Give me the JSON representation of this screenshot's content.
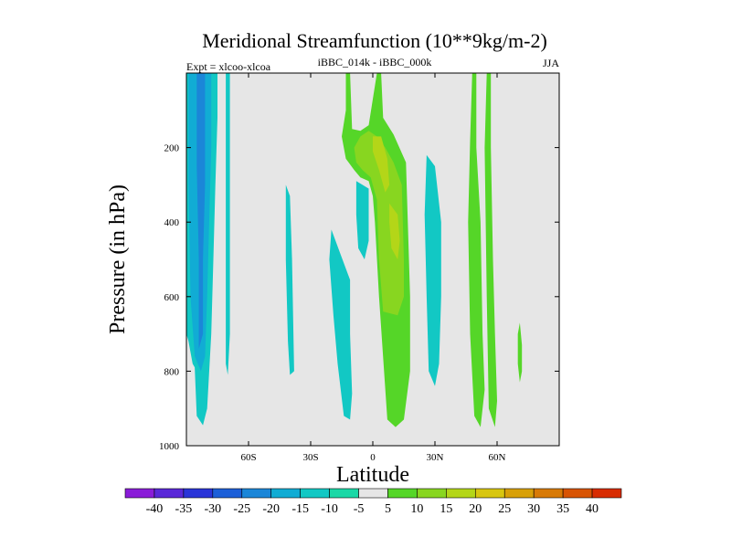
{
  "chart_data": {
    "type": "contour",
    "title": "Meridional Streamfunction (10**9kg/m-2)",
    "subtitle_left": "Expt = xlcoo-xlcoa",
    "subtitle_center": "iBBC_014k - iBBC_000k",
    "subtitle_right": "JJA",
    "xlabel": "Latitude",
    "ylabel": "Pressure (in hPa)",
    "xlim": [
      -90,
      90
    ],
    "ylim": [
      0,
      1000
    ],
    "x_ticks": [
      {
        "value": -60,
        "label": "60S"
      },
      {
        "value": -30,
        "label": "30S"
      },
      {
        "value": 0,
        "label": "0"
      },
      {
        "value": 30,
        "label": "30N"
      },
      {
        "value": 60,
        "label": "60N"
      }
    ],
    "y_ticks": [
      {
        "value": 200,
        "label": "200"
      },
      {
        "value": 400,
        "label": "400"
      },
      {
        "value": 600,
        "label": "600"
      },
      {
        "value": 800,
        "label": "800"
      },
      {
        "value": 1000,
        "label": "1000"
      }
    ],
    "background_color": "#e6e6e6",
    "colorbar": {
      "labels": [
        "-40",
        "-35",
        "-30",
        "-25",
        "-20",
        "-15",
        "-10",
        "-5",
        "5",
        "10",
        "15",
        "20",
        "25",
        "30",
        "35",
        "40"
      ],
      "colors": [
        "#8a1cd8",
        "#5a28d8",
        "#2a34d8",
        "#1c5fd8",
        "#1b86d8",
        "#11acd4",
        "#12c8c4",
        "#1ad8a6",
        "#e6e6e6",
        "#55d628",
        "#88d620",
        "#b4d618",
        "#d8c610",
        "#d8a008",
        "#d87a06",
        "#d85404",
        "#d82c02"
      ]
    },
    "regions": [
      {
        "level": "-10",
        "color": "#12c8c4",
        "points": [
          [
            -90,
            0
          ],
          [
            -75,
            0
          ],
          [
            -75,
            120
          ],
          [
            -76,
            300
          ],
          [
            -77,
            500
          ],
          [
            -78,
            700
          ],
          [
            -80,
            900
          ],
          [
            -82,
            945
          ],
          [
            -85,
            920
          ],
          [
            -86,
            790
          ],
          [
            -87,
            780
          ],
          [
            -89,
            720
          ],
          [
            -90,
            700
          ]
        ]
      },
      {
        "level": "-15",
        "color": "#11acd4",
        "points": [
          [
            -89,
            0
          ],
          [
            -78,
            0
          ],
          [
            -78,
            200
          ],
          [
            -79,
            400
          ],
          [
            -80,
            600
          ],
          [
            -81,
            760
          ],
          [
            -83,
            800
          ],
          [
            -86,
            760
          ],
          [
            -88,
            600
          ],
          [
            -89,
            300
          ]
        ]
      },
      {
        "level": "-20",
        "color": "#1b86d8",
        "points": [
          [
            -85,
            0
          ],
          [
            -81,
            0
          ],
          [
            -81,
            300
          ],
          [
            -82,
            500
          ],
          [
            -82,
            700
          ],
          [
            -84,
            740
          ],
          [
            -84,
            500
          ],
          [
            -85,
            250
          ]
        ]
      },
      {
        "level": "-10",
        "color": "#12c8c4",
        "points": [
          [
            -71,
            0
          ],
          [
            -69,
            0
          ],
          [
            -69,
            200
          ],
          [
            -69,
            500
          ],
          [
            -69,
            700
          ],
          [
            -70,
            810
          ],
          [
            -71,
            780
          ],
          [
            -71,
            500
          ],
          [
            -71,
            200
          ]
        ]
      },
      {
        "level": "-10",
        "color": "#12c8c4",
        "points": [
          [
            -42,
            300
          ],
          [
            -40,
            330
          ],
          [
            -39,
            500
          ],
          [
            -38,
            800
          ],
          [
            -40,
            810
          ],
          [
            -41,
            720
          ],
          [
            -42,
            500
          ]
        ]
      },
      {
        "level": "-10",
        "color": "#12c8c4",
        "points": [
          [
            -20,
            420
          ],
          [
            -16,
            480
          ],
          [
            -11,
            555
          ],
          [
            -11,
            700
          ],
          [
            -10,
            860
          ],
          [
            -11,
            930
          ],
          [
            -14,
            920
          ],
          [
            -17,
            780
          ],
          [
            -19,
            650
          ],
          [
            -21,
            500
          ]
        ]
      },
      {
        "level": "-10",
        "color": "#12c8c4",
        "points": [
          [
            -8,
            290
          ],
          [
            -2,
            310
          ],
          [
            -2,
            450
          ],
          [
            -4,
            500
          ],
          [
            -7,
            470
          ],
          [
            -8,
            380
          ]
        ]
      },
      {
        "level": "-10",
        "color": "#12c8c4",
        "points": [
          [
            26,
            220
          ],
          [
            30,
            250
          ],
          [
            33,
            400
          ],
          [
            33,
            600
          ],
          [
            32,
            780
          ],
          [
            30,
            840
          ],
          [
            27,
            800
          ],
          [
            26,
            600
          ],
          [
            25,
            380
          ]
        ]
      },
      {
        "level": "5",
        "color": "#55d628",
        "points": [
          [
            -13,
            0
          ],
          [
            -11,
            0
          ],
          [
            -10,
            150
          ],
          [
            -6,
            155
          ],
          [
            -2,
            140
          ],
          [
            2,
            0
          ],
          [
            4,
            0
          ],
          [
            5,
            120
          ],
          [
            10,
            165
          ],
          [
            16,
            240
          ],
          [
            18,
            600
          ],
          [
            18,
            800
          ],
          [
            15,
            930
          ],
          [
            11,
            950
          ],
          [
            7,
            930
          ],
          [
            3,
            600
          ],
          [
            1,
            400
          ],
          [
            0,
            330
          ],
          [
            -2,
            290
          ],
          [
            -6,
            280
          ],
          [
            -9,
            260
          ],
          [
            -13,
            230
          ],
          [
            -15,
            170
          ],
          [
            -13,
            100
          ]
        ]
      },
      {
        "level": "10",
        "color": "#88d620",
        "points": [
          [
            -9,
            200
          ],
          [
            -6,
            170
          ],
          [
            -2,
            155
          ],
          [
            2,
            170
          ],
          [
            6,
            200
          ],
          [
            10,
            240
          ],
          [
            14,
            300
          ],
          [
            15,
            500
          ],
          [
            15,
            600
          ],
          [
            12,
            650
          ],
          [
            5,
            640
          ],
          [
            3,
            500
          ],
          [
            2,
            340
          ],
          [
            -1,
            280
          ],
          [
            -5,
            260
          ],
          [
            -8,
            240
          ]
        ]
      },
      {
        "level": "15",
        "color": "#b4d618",
        "points": [
          [
            0,
            170
          ],
          [
            4,
            170
          ],
          [
            7,
            230
          ],
          [
            8,
            300
          ],
          [
            6,
            320
          ],
          [
            3,
            260
          ],
          [
            0,
            210
          ]
        ]
      },
      {
        "level": "15",
        "color": "#b4d618",
        "points": [
          [
            8,
            350
          ],
          [
            12,
            380
          ],
          [
            13,
            450
          ],
          [
            12,
            500
          ],
          [
            9,
            470
          ],
          [
            8,
            400
          ]
        ]
      },
      {
        "level": "5",
        "color": "#55d628",
        "points": [
          [
            48,
            0
          ],
          [
            50,
            0
          ],
          [
            50,
            200
          ],
          [
            52,
            400
          ],
          [
            53,
            700
          ],
          [
            54,
            850
          ],
          [
            52,
            950
          ],
          [
            49,
            920
          ],
          [
            47,
            700
          ],
          [
            46,
            400
          ],
          [
            47,
            180
          ]
        ]
      },
      {
        "level": "5",
        "color": "#55d628",
        "points": [
          [
            55,
            0
          ],
          [
            57,
            0
          ],
          [
            57,
            200
          ],
          [
            58,
            500
          ],
          [
            59,
            700
          ],
          [
            60,
            880
          ],
          [
            59,
            950
          ],
          [
            56,
            900
          ],
          [
            55,
            600
          ],
          [
            54,
            200
          ]
        ]
      },
      {
        "level": "5",
        "color": "#55d628",
        "points": [
          [
            71,
            670
          ],
          [
            72,
            730
          ],
          [
            72,
            800
          ],
          [
            71,
            830
          ],
          [
            70,
            780
          ],
          [
            70,
            700
          ]
        ]
      }
    ]
  }
}
